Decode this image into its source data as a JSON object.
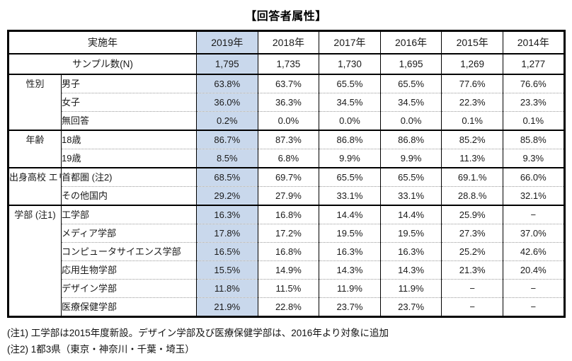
{
  "title": "【回答者属性】",
  "colors": {
    "highlight": "#c9d8ec",
    "border": "#000000",
    "dotted_separator": "#999999"
  },
  "chart_data": {
    "type": "table",
    "title": "【回答者属性】",
    "highlighted_column": "2019年",
    "header": {
      "label": "実施年",
      "years": [
        "2019年",
        "2018年",
        "2017年",
        "2016年",
        "2015年",
        "2014年"
      ]
    },
    "sample": {
      "label": "サンプル数(N)",
      "values": [
        "1,795",
        "1,735",
        "1,730",
        "1,695",
        "1,269",
        "1,277"
      ]
    },
    "groups": [
      {
        "label": "性別",
        "rows": [
          {
            "item": "男子",
            "values": [
              "63.8%",
              "63.7%",
              "65.5%",
              "65.5%",
              "77.6%",
              "76.6%"
            ]
          },
          {
            "item": "女子",
            "values": [
              "36.0%",
              "36.3%",
              "34.5%",
              "34.5%",
              "22.3%",
              "23.3%"
            ]
          },
          {
            "item": "無回答",
            "values": [
              "0.2%",
              "0.0%",
              "0.0%",
              "0.0%",
              "0.1%",
              "0.1%"
            ]
          }
        ]
      },
      {
        "label": "年齢",
        "rows": [
          {
            "item": "18歳",
            "values": [
              "86.7%",
              "87.3%",
              "86.8%",
              "86.8%",
              "85.2%",
              "85.8%"
            ]
          },
          {
            "item": "19歳",
            "values": [
              "8.5%",
              "6.8%",
              "9.9%",
              "9.9%",
              "11.3%",
              "9.3%"
            ]
          }
        ]
      },
      {
        "label": "出身高校\nエリア",
        "rows": [
          {
            "item": "首都圏 (注2)",
            "values": [
              "68.5%",
              "69.7%",
              "65.5%",
              "65.5%",
              "69.1.%",
              "66.0%"
            ]
          },
          {
            "item": "その他国内",
            "values": [
              "29.2%",
              "27.9%",
              "33.1%",
              "33.1%",
              "28.8.%",
              "32.1%"
            ]
          }
        ]
      },
      {
        "label": "学部\n(注1)",
        "rows": [
          {
            "item": "工学部",
            "values": [
              "16.3%",
              "16.8%",
              "14.4%",
              "14.4%",
              "25.9%",
              "−"
            ]
          },
          {
            "item": "メディア学部",
            "values": [
              "17.8%",
              "17.2%",
              "19.5%",
              "19.5%",
              "27.3%",
              "37.0%"
            ]
          },
          {
            "item": "コンピュータサイエンス学部",
            "values": [
              "16.5%",
              "16.8%",
              "16.3%",
              "16.3%",
              "25.2%",
              "42.6%"
            ]
          },
          {
            "item": "応用生物学部",
            "values": [
              "15.5%",
              "14.9%",
              "14.3%",
              "14.3%",
              "21.3%",
              "20.4%"
            ]
          },
          {
            "item": "デザイン学部",
            "values": [
              "11.8%",
              "11.5%",
              "11.9%",
              "11.9%",
              "−",
              "−"
            ]
          },
          {
            "item": "医療保健学部",
            "values": [
              "21.9%",
              "22.8%",
              "23.7%",
              "23.7%",
              "−",
              "−"
            ]
          }
        ]
      }
    ],
    "footnotes": [
      "(注1) 工学部は2015年度新設。デザイン学部及び医療保健学部は、2016年より対象に追加",
      "(注2) 1都3県（東京・神奈川・千葉・埼玉）"
    ]
  }
}
